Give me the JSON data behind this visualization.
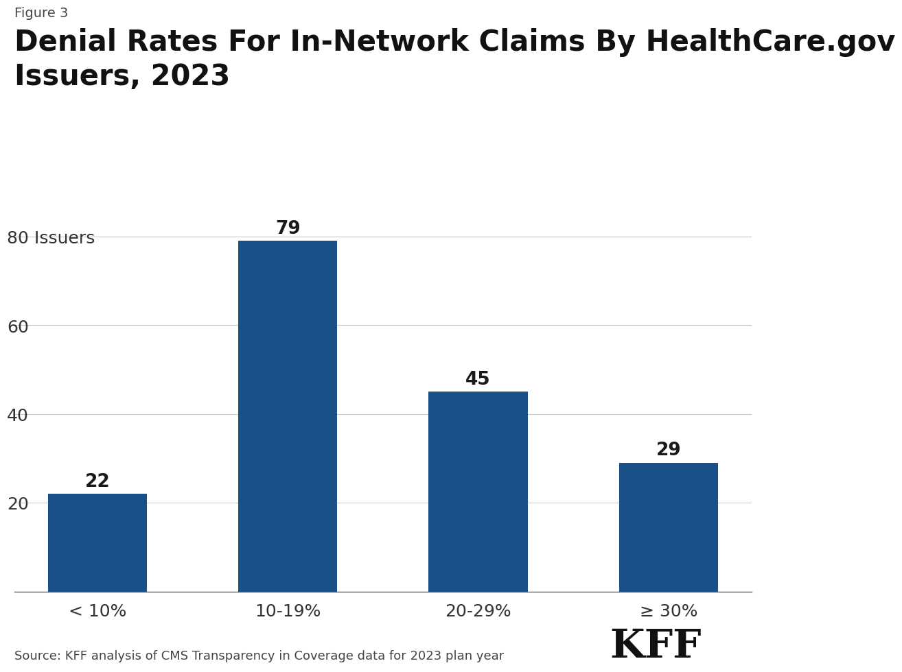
{
  "figure_label": "Figure 3",
  "title": "Denial Rates For In-Network Claims By HealthCare.gov\nIssuers, 2023",
  "categories": [
    "< 10%",
    "10-19%",
    "20-29%",
    "≥ 30%"
  ],
  "values": [
    22,
    79,
    45,
    29
  ],
  "bar_color": "#1a5089",
  "yticks": [
    0,
    20,
    40,
    60,
    80
  ],
  "ylim": [
    0,
    90
  ],
  "source_text": "Source: KFF analysis of CMS Transparency in Coverage data for 2023 plan year",
  "kff_text": "KFF",
  "background_color": "#ffffff",
  "bar_label_fontsize": 19,
  "title_fontsize": 30,
  "figure_label_fontsize": 14,
  "tick_fontsize": 18,
  "source_fontsize": 13,
  "kff_fontsize": 42
}
